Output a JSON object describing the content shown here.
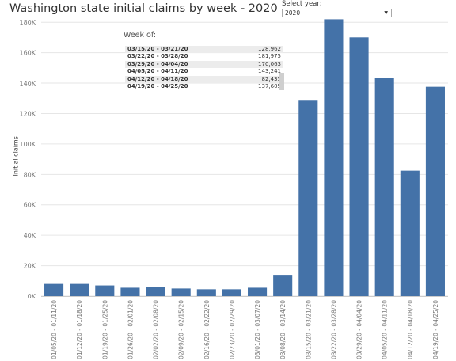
{
  "title": "Washington state initial claims by week - 2020",
  "year_filter": {
    "label": "Select year:",
    "value": "2020"
  },
  "tooltip": {
    "header": "Week of:",
    "rows": [
      {
        "week": "03/15/20 - 03/21/20",
        "value": "128,962"
      },
      {
        "week": "03/22/20 - 03/28/20",
        "value": "181,975"
      },
      {
        "week": "03/29/20 - 04/04/20",
        "value": "170,063"
      },
      {
        "week": "04/05/20 - 04/11/20",
        "value": "143,241"
      },
      {
        "week": "04/12/20 - 04/18/20",
        "value": "82,435"
      },
      {
        "week": "04/19/20 - 04/25/20",
        "value": "137,605"
      }
    ]
  },
  "colors": {
    "bar": "#4472a8",
    "grid": "#e6e6e6",
    "axis_text": "#777777"
  },
  "chart_data": {
    "type": "bar",
    "title": "Washington state initial claims by week - 2020",
    "xlabel": "",
    "ylabel": "Initial claims",
    "ylim": [
      0,
      190000
    ],
    "yticks": [
      "0K",
      "20K",
      "40K",
      "60K",
      "80K",
      "100K",
      "120K",
      "140K",
      "160K",
      "180K"
    ],
    "ytick_values": [
      0,
      20000,
      40000,
      60000,
      80000,
      100000,
      120000,
      140000,
      160000,
      180000
    ],
    "grid": true,
    "categories": [
      "01/05/20 - 01/11/20",
      "01/12/20 - 01/18/20",
      "01/19/20 - 01/25/20",
      "01/26/20 - 02/01/20",
      "02/02/20 - 02/08/20",
      "02/09/20 - 02/15/20",
      "02/16/20 - 02/22/20",
      "02/23/20 - 02/29/20",
      "03/01/20 - 03/07/20",
      "03/08/20 - 03/14/20",
      "03/15/20 - 03/21/20",
      "03/22/20 - 03/28/20",
      "03/29/20 - 04/04/20",
      "04/05/20 - 04/11/20",
      "04/12/20 - 04/18/20",
      "04/19/20 - 04/25/20"
    ],
    "values": [
      8000,
      8000,
      7000,
      5500,
      6000,
      5000,
      4500,
      4500,
      5500,
      14000,
      128962,
      181975,
      170063,
      143241,
      82435,
      137605
    ]
  }
}
